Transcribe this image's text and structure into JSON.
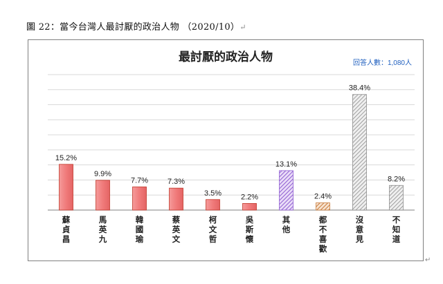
{
  "caption": {
    "text": "圖 22：當今台灣人最討厭的政治人物 （2020/10）",
    "return_mark": "↵"
  },
  "chart_data": {
    "type": "bar",
    "title": "最討厭的政治人物",
    "subtitle": "回答人數：1,080人",
    "categories": [
      "蘇貞昌",
      "馬英九",
      "韓國瑜",
      "蔡英文",
      "柯文哲",
      "吳斯懷",
      "其他",
      "都不喜歡",
      "沒意見",
      "不知道"
    ],
    "values": [
      15.2,
      9.9,
      7.7,
      7.3,
      3.5,
      2.2,
      13.1,
      2.4,
      38.4,
      8.2
    ],
    "value_labels": [
      "15.2%",
      "9.9%",
      "7.7%",
      "7.3%",
      "3.5%",
      "2.2%",
      "13.1%",
      "2.4%",
      "38.4%",
      "8.2%"
    ],
    "fills": [
      "red",
      "red",
      "red",
      "red",
      "red",
      "red",
      "purple-hatch",
      "orange-hatch",
      "gray-hatch",
      "gray-hatch"
    ],
    "ylim": [
      0,
      45
    ],
    "grid": true,
    "legend": "none",
    "colors": {
      "red": "#f07b7b",
      "red_border": "#c0392b",
      "purple": "#8e5bd1",
      "orange": "#c87a3a",
      "gray": "#8c8c8c",
      "gridline": "#d9d9d9",
      "subtitle": "#1f5fbf"
    }
  }
}
